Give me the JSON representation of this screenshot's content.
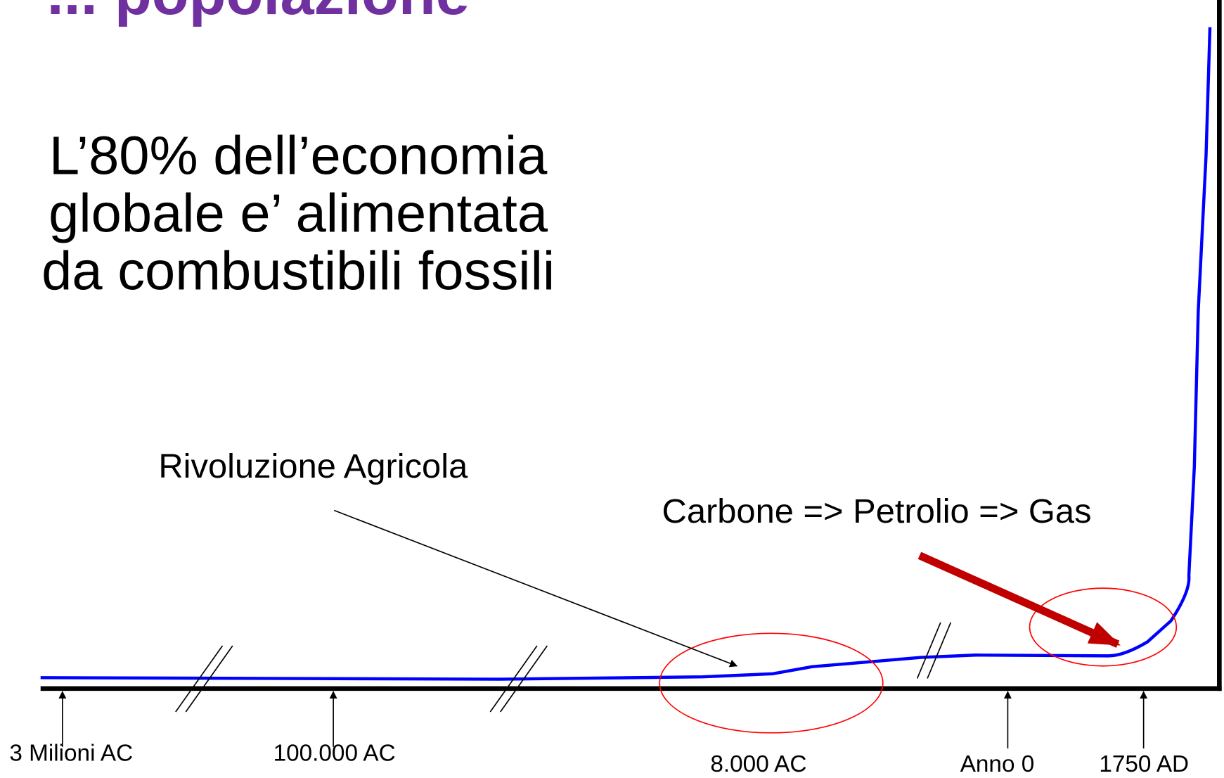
{
  "header": {
    "title": "... popolazione"
  },
  "statement": {
    "lines": [
      "L’80% dell’economia",
      "globale e’ alimentata",
      "da combustibili fossili"
    ]
  },
  "annotations": {
    "agricultural": "Rivoluzione Agricola",
    "fossil": "Carbone => Petrolio => Gas"
  },
  "timeline": {
    "labels": [
      "3 Milioni AC",
      "100.000 AC",
      "8.000 AC",
      "Anno 0",
      "1750 AD"
    ]
  }
}
